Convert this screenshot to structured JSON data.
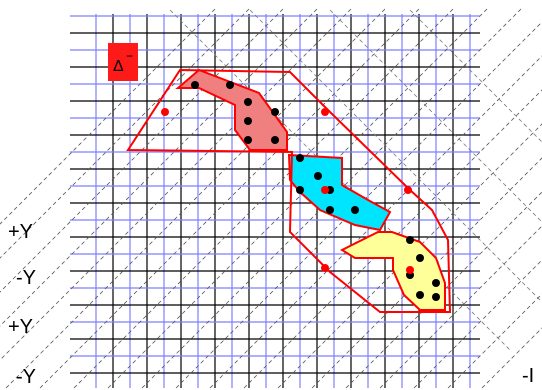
{
  "badge": {
    "label": "Δ",
    "sup": "−",
    "fill": "#ff1a1a"
  },
  "y_labels": [
    "+Y",
    "-Y",
    "+Y",
    "-Y"
  ],
  "edge_label": "-I",
  "colors": {
    "grid_blue": "#7f7fff",
    "grid_black": "#000000",
    "outline": "#ff0000",
    "region_red": "#f08080",
    "region_cyan": "#00e5ff",
    "region_yellow": "#ffff99",
    "vertex_black": "#000000",
    "vertex_red": "#ff0000"
  }
}
